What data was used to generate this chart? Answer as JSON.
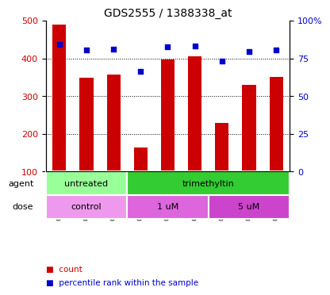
{
  "title": "GDS2555 / 1388338_at",
  "samples": [
    "GSM114191",
    "GSM114198",
    "GSM114199",
    "GSM114192",
    "GSM114194",
    "GSM114195",
    "GSM114193",
    "GSM114196",
    "GSM114197"
  ],
  "bar_values": [
    490,
    348,
    357,
    163,
    397,
    405,
    228,
    330,
    350
  ],
  "dot_values": [
    437,
    422,
    424,
    365,
    430,
    433,
    393,
    418,
    422
  ],
  "bar_color": "#cc0000",
  "dot_color": "#0000cc",
  "ylim_left": [
    100,
    500
  ],
  "ylim_right": [
    0,
    100
  ],
  "yticks_left": [
    100,
    200,
    300,
    400,
    500
  ],
  "yticks_right": [
    0,
    25,
    50,
    75,
    100
  ],
  "ytick_labels_right": [
    "0",
    "25",
    "50",
    "75",
    "100%"
  ],
  "grid_values": [
    200,
    300,
    400
  ],
  "agent_labels": [
    {
      "label": "untreated",
      "span": [
        0,
        3
      ],
      "color": "#99ff99"
    },
    {
      "label": "trimethyltin",
      "span": [
        3,
        9
      ],
      "color": "#33cc33"
    }
  ],
  "dose_labels": [
    {
      "label": "control",
      "span": [
        0,
        3
      ],
      "color": "#ee99ee"
    },
    {
      "label": "1 uM",
      "span": [
        3,
        6
      ],
      "color": "#dd66dd"
    },
    {
      "label": "5 uM",
      "span": [
        6,
        9
      ],
      "color": "#cc44cc"
    }
  ],
  "agent_row_label": "agent",
  "dose_row_label": "dose",
  "legend_count_color": "#cc0000",
  "legend_dot_color": "#0000cc",
  "background_color": "#ffffff",
  "tick_label_color_left": "#cc0000",
  "tick_label_color_right": "#0000cc"
}
